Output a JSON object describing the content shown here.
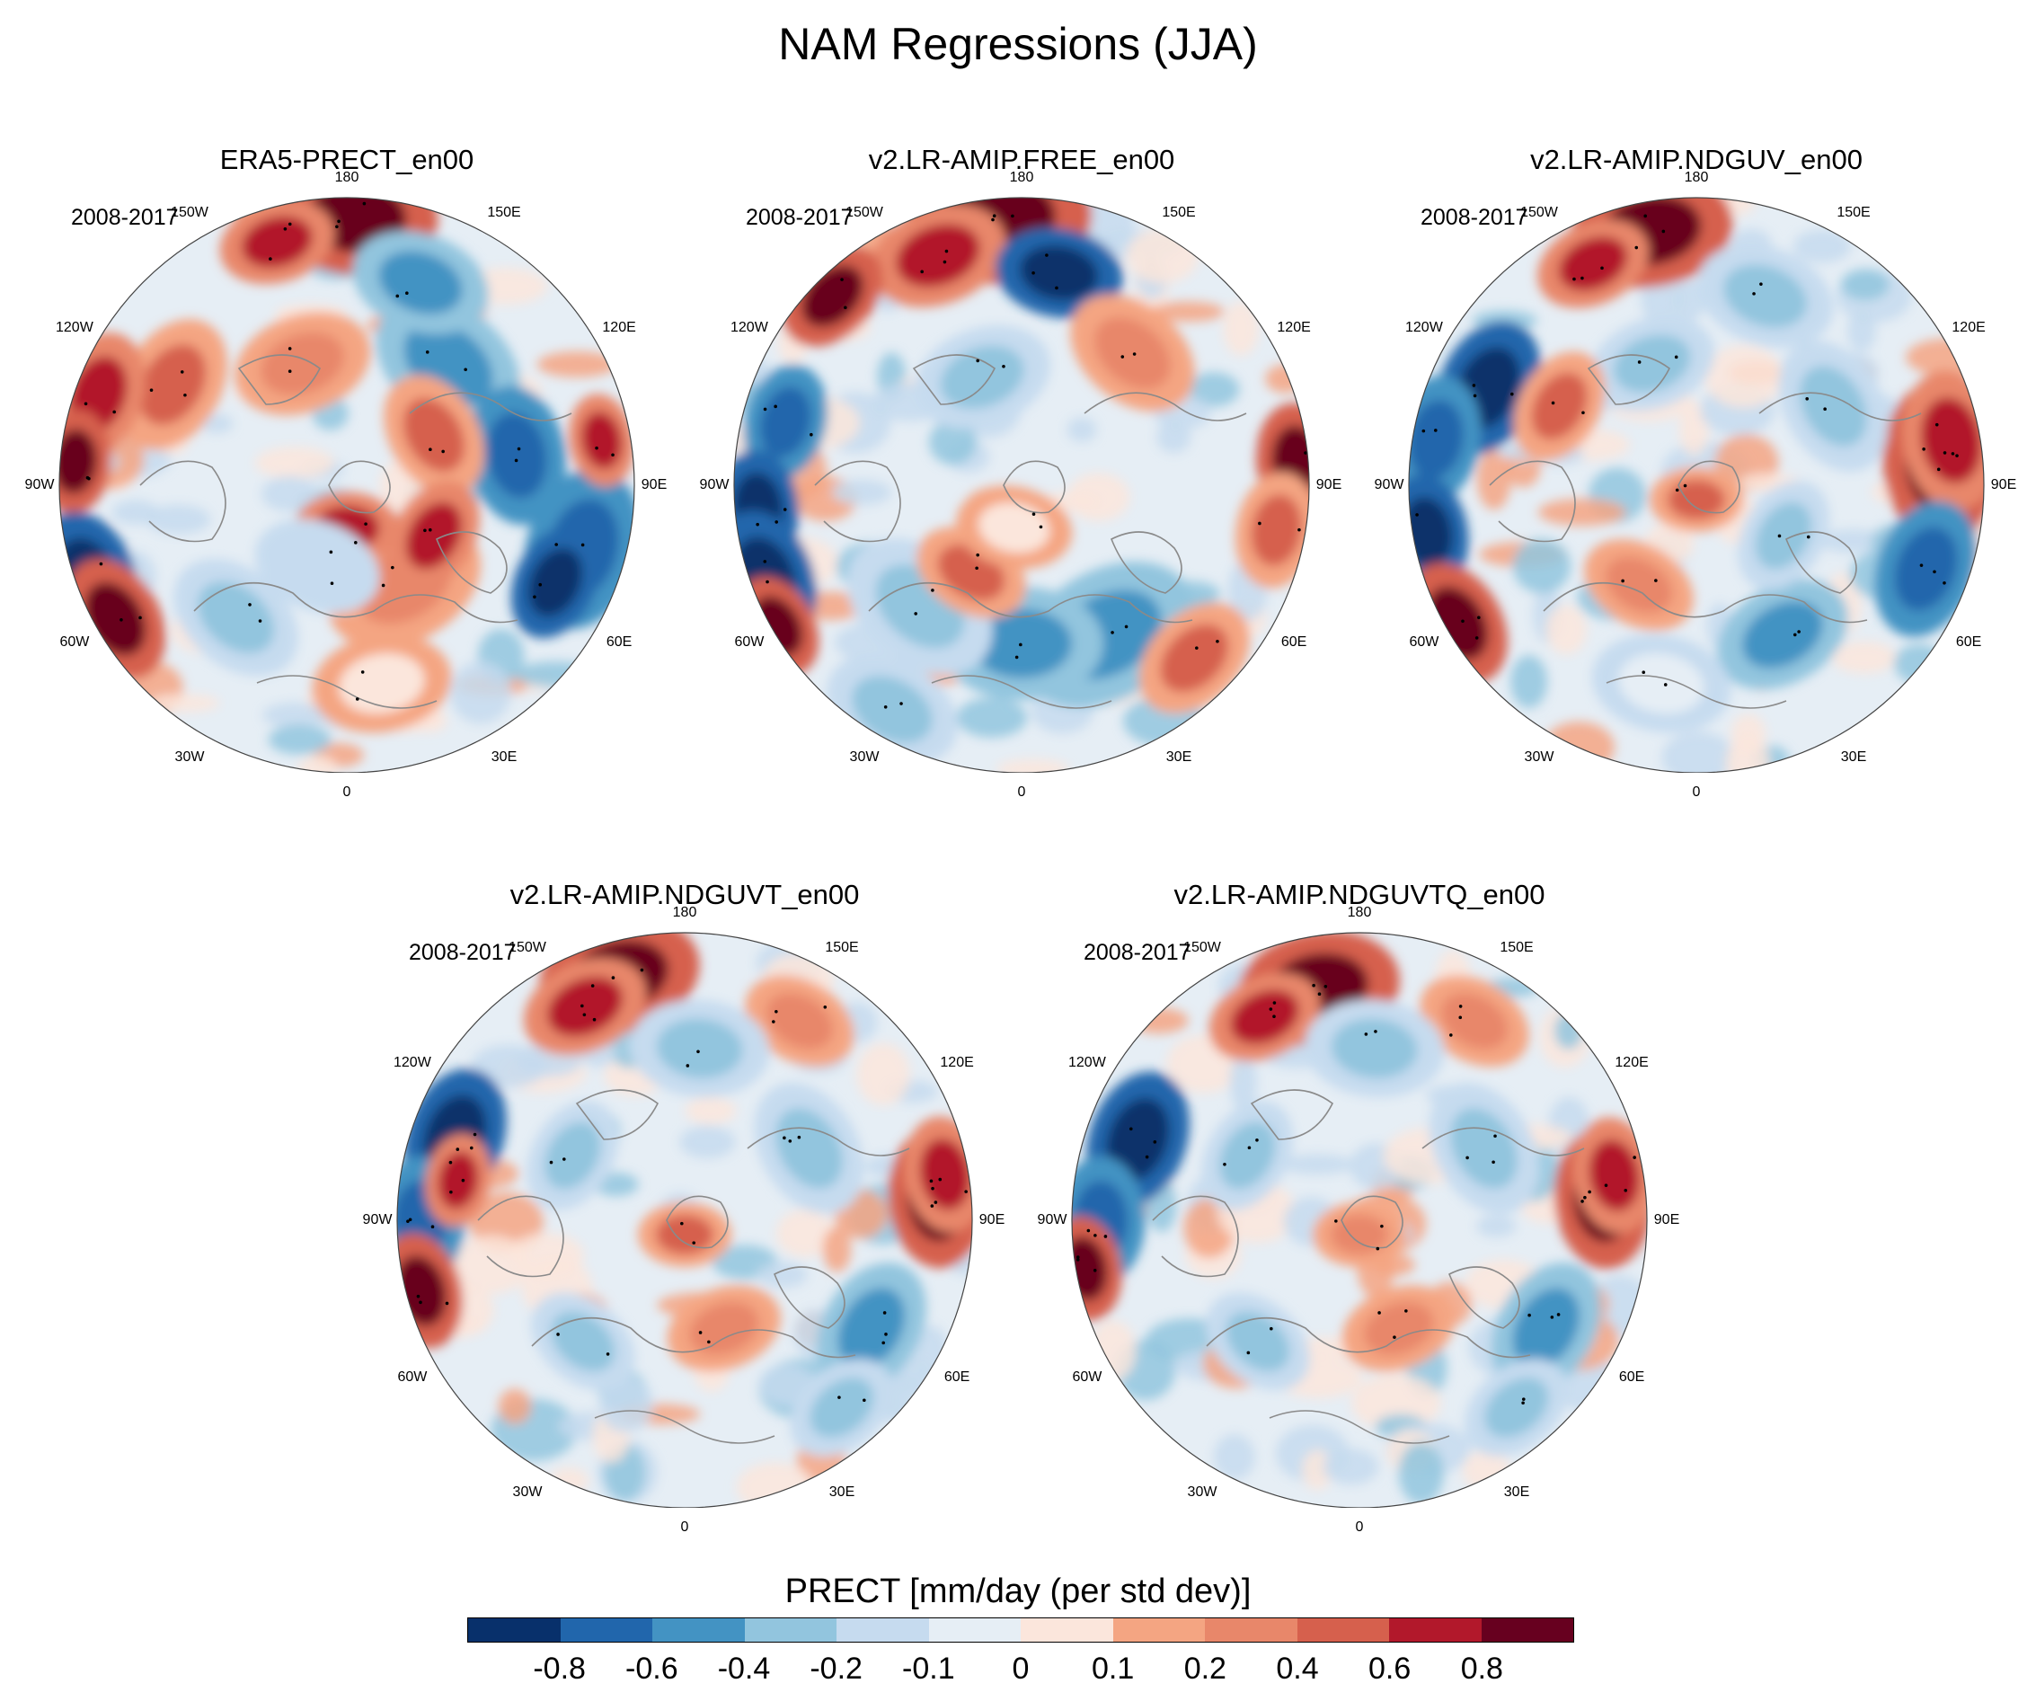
{
  "title": "NAM Regressions (JJA)",
  "period": "2008-2017",
  "longitude_labels": [
    "180",
    "150E",
    "120E",
    "90E",
    "60E",
    "30E",
    "0",
    "30W",
    "60W",
    "90W",
    "120W",
    "150W"
  ],
  "panels": [
    {
      "title": "ERA5-PRECT_en00"
    },
    {
      "title": "v2.LR-AMIP.FREE_en00"
    },
    {
      "title": "v2.LR-AMIP.NDGUV_en00"
    },
    {
      "title": "v2.LR-AMIP.NDGUVT_en00"
    },
    {
      "title": "v2.LR-AMIP.NDGUVTQ_en00"
    }
  ],
  "colorbar": {
    "title": "PRECT [mm/day (per std dev)]",
    "ticks": [
      "-0.8",
      "-0.6",
      "-0.4",
      "-0.2",
      "-0.1",
      "0",
      "0.1",
      "0.2",
      "0.4",
      "0.6",
      "0.8"
    ],
    "colors": [
      "#08306b",
      "#2166ac",
      "#4393c3",
      "#92c5de",
      "#c6dbef",
      "#e6eef5",
      "#fbe6dc",
      "#f4a582",
      "#e8876a",
      "#d6604d",
      "#b2182b",
      "#67001f"
    ]
  }
}
